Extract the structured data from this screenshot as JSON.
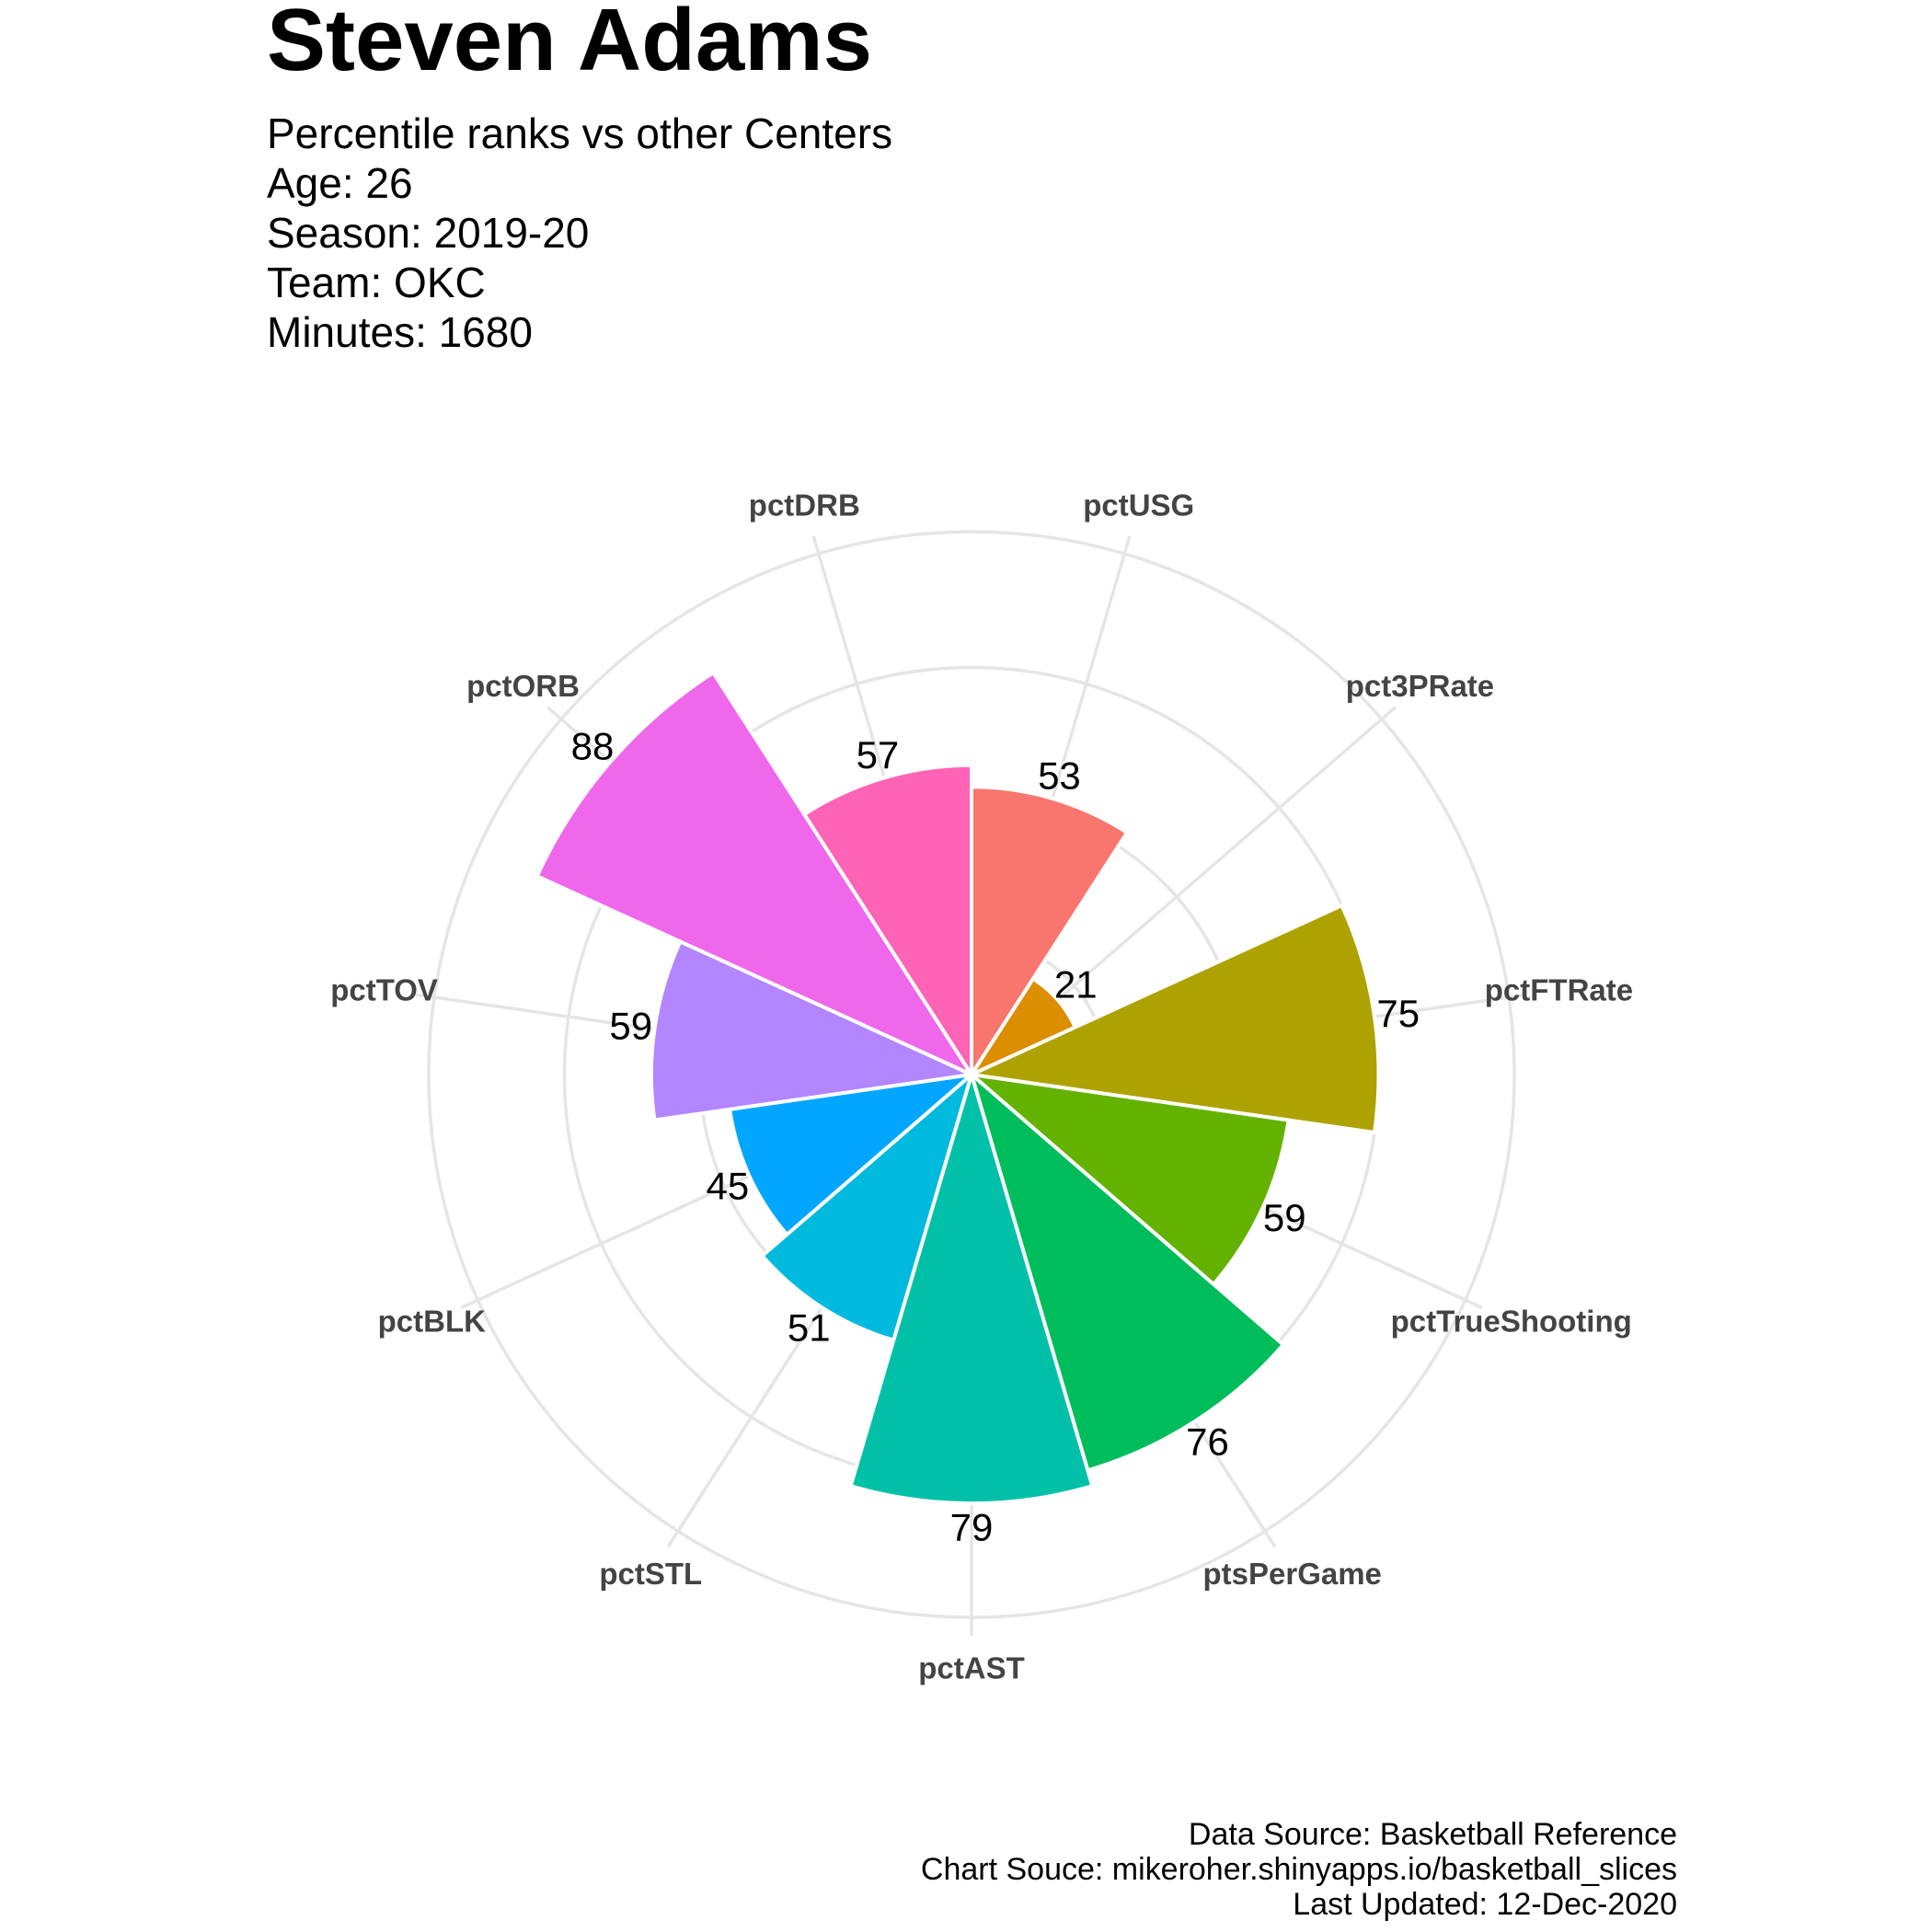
{
  "header": {
    "title": "Steven Adams",
    "subtitle_lines": [
      "Percentile ranks vs other Centers",
      "Age: 26",
      "Season: 2019-20",
      "Team: OKC",
      "Minutes: 1680"
    ]
  },
  "footer": {
    "lines": [
      "Data Source: Basketball Reference",
      "Chart Souce: mikeroher.shinyapps.io/basketball_slices",
      "Last Updated: 12-Dec-2020"
    ]
  },
  "chart_data": {
    "type": "polar-bar",
    "categories": [
      "pctUSG",
      "pct3PRate",
      "pctFTRate",
      "pctTrueShooting",
      "ptsPerGame",
      "pctAST",
      "pctSTL",
      "pctBLK",
      "pctTOV",
      "pctORB",
      "pctDRB"
    ],
    "values": [
      53,
      21,
      75,
      59,
      76,
      79,
      51,
      45,
      59,
      88,
      57
    ],
    "colors": [
      "#F8766D",
      "#DB8E00",
      "#AEA200",
      "#64B200",
      "#00BD5C",
      "#00C1A7",
      "#00BADE",
      "#00A6FF",
      "#B385FF",
      "#EF67EB",
      "#FF63B6"
    ],
    "rlim": [
      0,
      100
    ],
    "grid": true,
    "legend": "none"
  }
}
